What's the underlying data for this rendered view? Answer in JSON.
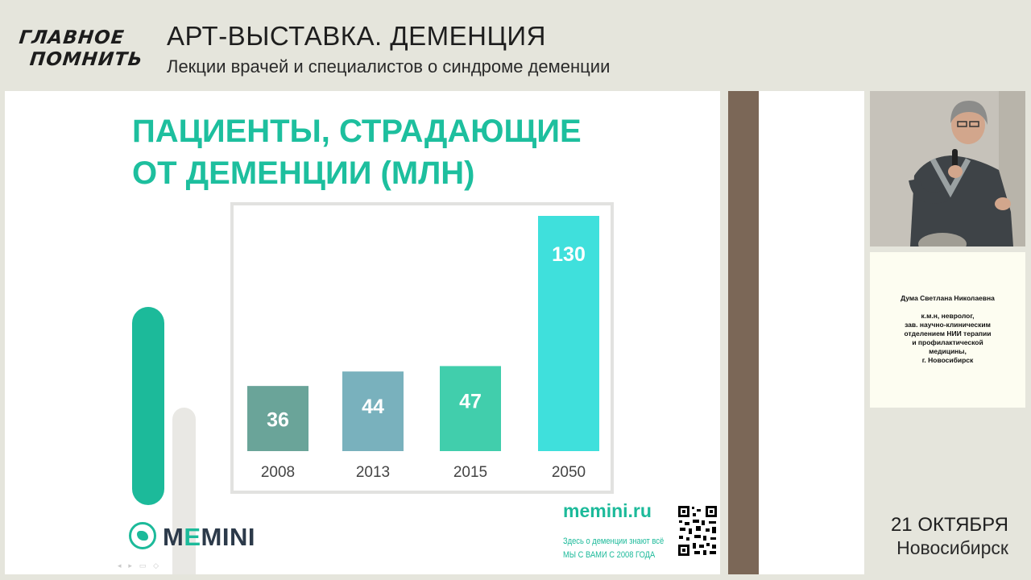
{
  "header": {
    "logo_line1": "ГЛАВНОЕ",
    "logo_line2": "ПОМНИТЬ",
    "title": "АРТ-ВЫСТАВКА. ДЕМЕНЦИЯ",
    "subtitle": "Лекции врачей и специалистов о синдроме деменции"
  },
  "slide": {
    "title_line1": "ПАЦИЕНТЫ, СТРАДАЮЩИЕ",
    "title_line2": "ОТ ДЕМЕНЦИИ (МЛН)",
    "brand": "MEMINI",
    "brand_prefix": "M",
    "brand_accent": "E",
    "brand_suffix": "MINI",
    "site": "memini.ru",
    "tagline1": "Здесь о деменции знают всё",
    "tagline2": "МЫ С ВАМИ С 2008 ГОДА",
    "accent_color": "#1cba9a"
  },
  "chart_data": {
    "type": "bar",
    "categories": [
      "2008",
      "2013",
      "2015",
      "2050"
    ],
    "values": [
      36,
      44,
      47,
      130
    ],
    "data_labels": [
      "36",
      "44",
      "47",
      "130"
    ],
    "colors": [
      "#6aa499",
      "#79b1bd",
      "#41ceac",
      "#3fe0dc"
    ],
    "title": "",
    "xlabel": "",
    "ylabel": "",
    "ylim": [
      0,
      130
    ],
    "grid": false,
    "legend": "none"
  },
  "speaker": {
    "name": "Дума Светлана Николаевна",
    "lines": [
      "к.м.н, невролог,",
      "зав. научно-клиническим",
      "отделением НИИ терапии",
      "и профилактической",
      "медицины,",
      "г. Новосибирск"
    ]
  },
  "event": {
    "date": "21 ОКТЯБРЯ",
    "city": "Новосибирск"
  }
}
